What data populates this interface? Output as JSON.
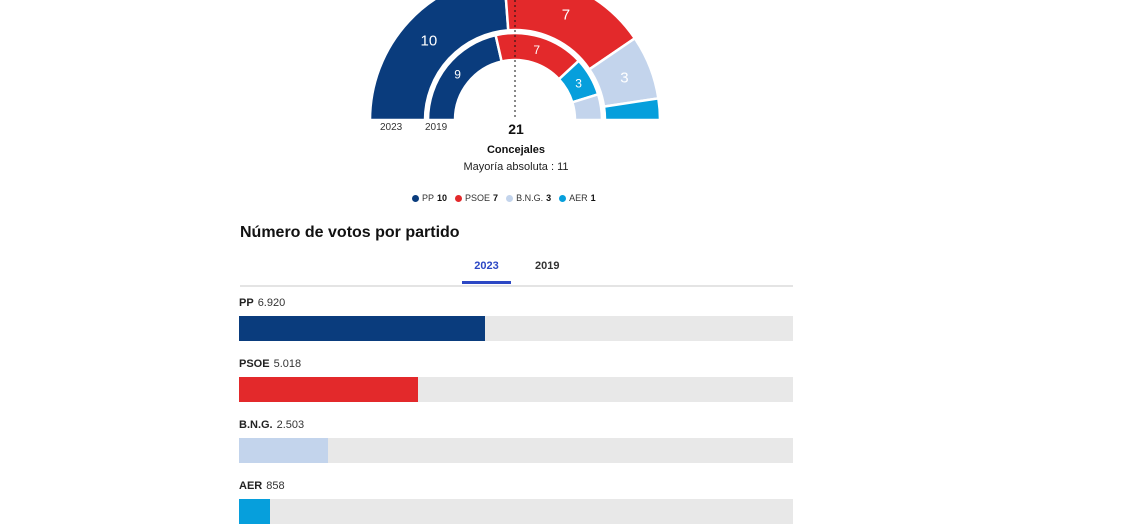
{
  "chart_data": [
    {
      "type": "hemicycle",
      "title": "Concejales",
      "total_seats": 21,
      "majority_label": "Mayoría absoluta : 11",
      "years": [
        "2023",
        "2019"
      ],
      "series": [
        {
          "name": "2023",
          "parties": [
            {
              "party": "PP",
              "seats": 10,
              "color": "#0a3c7d"
            },
            {
              "party": "PSOE",
              "seats": 7,
              "color": "#e3292b"
            },
            {
              "party": "B.N.G.",
              "seats": 3,
              "color": "#c3d4ec"
            },
            {
              "party": "AER",
              "seats": 1,
              "color": "#069fdc"
            }
          ]
        },
        {
          "name": "2019",
          "parties": [
            {
              "party": "PP",
              "seats": 9,
              "color": "#0a3c7d"
            },
            {
              "party": "PSOE",
              "seats": 7,
              "color": "#e3292b"
            },
            {
              "party": "AER",
              "seats": 3,
              "color": "#069fdc"
            },
            {
              "party": "B.N.G.",
              "seats": 2,
              "color": "#c3d4ec"
            }
          ]
        }
      ]
    },
    {
      "type": "bar",
      "title": "Número de votos por partido",
      "year": "2023",
      "categories": [
        "PP",
        "PSOE",
        "B.N.G.",
        "AER"
      ],
      "values": [
        6920,
        5018,
        2503,
        858
      ],
      "value_labels": [
        "6.920",
        "5.018",
        "2.503",
        "858"
      ],
      "colors": [
        "#0a3c7d",
        "#e3292b",
        "#c3d4ec",
        "#069fdc"
      ],
      "xlim": [
        0,
        15570
      ]
    }
  ],
  "legend": {
    "items": [
      {
        "party": "PP",
        "seats": "10",
        "color": "#0a3c7d"
      },
      {
        "party": "PSOE",
        "seats": "7",
        "color": "#e3292b"
      },
      {
        "party": "B.N.G.",
        "seats": "3",
        "color": "#c3d4ec"
      },
      {
        "party": "AER",
        "seats": "1",
        "color": "#069fdc"
      }
    ]
  },
  "tabs": {
    "active": "2023",
    "items": [
      "2023",
      "2019"
    ]
  }
}
